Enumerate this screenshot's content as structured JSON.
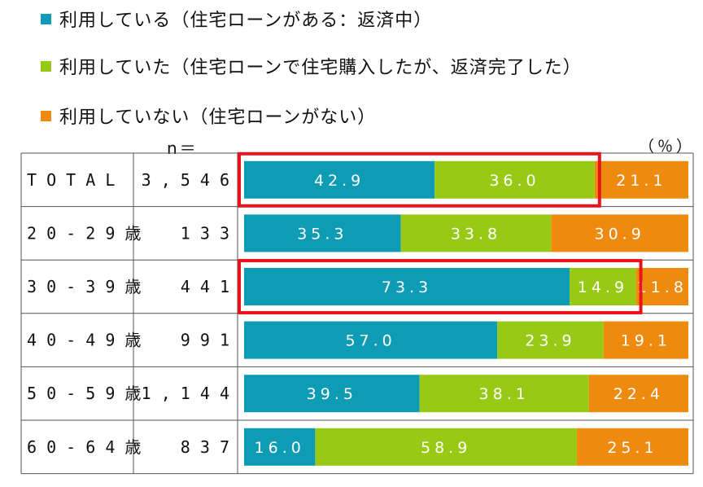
{
  "legend": [
    {
      "label": "利用している（住宅ローンがある：返済中）",
      "color": "#0E9BB4"
    },
    {
      "label": "利用していた（住宅ローンで住宅購入したが、返済完了した）",
      "color": "#98C914"
    },
    {
      "label": "利用していない（住宅ローンがない）",
      "color": "#EE8A0E"
    }
  ],
  "n_header": "n＝",
  "percent_label": "（％）",
  "chart_data": {
    "type": "bar",
    "orientation": "horizontal",
    "stacked": true,
    "normalized": true,
    "unit": "%",
    "categories": [
      "TOTAL",
      "20-29歳",
      "30-39歳",
      "40-49歳",
      "50-59歳",
      "60-64歳"
    ],
    "n": [
      "3,546",
      "133",
      "441",
      "991",
      "1,144",
      "837"
    ],
    "series": [
      {
        "name": "利用している（住宅ローンがある：返済中）",
        "color": "#0E9BB4",
        "values": [
          42.9,
          35.3,
          73.3,
          57.0,
          39.5,
          16.0
        ],
        "labels": [
          "42.9",
          "35.3",
          "73.3",
          "57.0",
          "39.5",
          "16.0"
        ]
      },
      {
        "name": "利用していた（住宅ローンで住宅購入したが、返済完了した）",
        "color": "#98C914",
        "values": [
          36.0,
          33.8,
          14.9,
          23.9,
          38.1,
          58.9
        ],
        "labels": [
          "36.0",
          "33.8",
          "14.9",
          "23.9",
          "38.1",
          "58.9"
        ]
      },
      {
        "name": "利用していない（住宅ローンがない）",
        "color": "#EE8A0E",
        "values": [
          21.1,
          30.9,
          11.8,
          19.1,
          22.4,
          25.1
        ],
        "labels": [
          "21.1",
          "30.9",
          "11.8",
          "19.1",
          "22.4",
          "25.1"
        ]
      }
    ],
    "highlighted_categories": [
      "TOTAL",
      "30-39歳"
    ],
    "highlight_color": "#E8141B",
    "xlim": [
      0,
      100
    ]
  }
}
